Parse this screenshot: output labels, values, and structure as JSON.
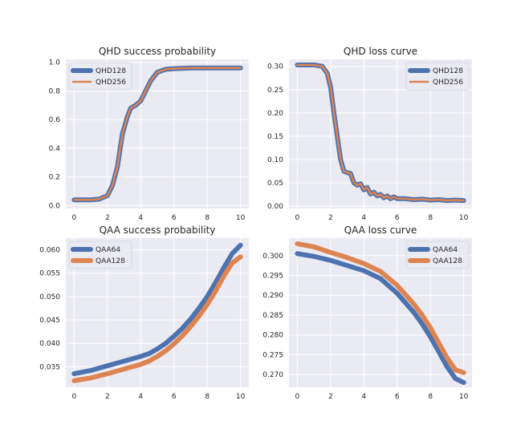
{
  "chart_data": [
    {
      "type": "line",
      "title": "QHD success probability",
      "xlabel": "",
      "ylabel": "",
      "xlim": [
        -0.5,
        10.5
      ],
      "ylim": [
        -0.02,
        1.02
      ],
      "xticks": [
        0,
        2,
        4,
        6,
        8,
        10
      ],
      "yticks": [
        0.0,
        0.2,
        0.4,
        0.6,
        0.8,
        1.0
      ],
      "ytick_decimals": 1,
      "grid": true,
      "legend_position": "upper-left",
      "series": [
        {
          "name": "QHD128",
          "color": "#4c72b0",
          "width": "thick",
          "x": [
            0,
            0.5,
            1.0,
            1.5,
            2.0,
            2.3,
            2.6,
            2.9,
            3.2,
            3.4,
            3.7,
            4.0,
            4.3,
            4.6,
            5.0,
            5.5,
            6.0,
            7.0,
            8.0,
            9.0,
            10.0
          ],
          "y": [
            0.04,
            0.04,
            0.04,
            0.045,
            0.07,
            0.14,
            0.27,
            0.5,
            0.62,
            0.68,
            0.7,
            0.73,
            0.8,
            0.87,
            0.93,
            0.95,
            0.955,
            0.96,
            0.96,
            0.96,
            0.96
          ]
        },
        {
          "name": "QHD256",
          "color": "#dd8452",
          "width": "thin",
          "x": [
            0,
            0.5,
            1.0,
            1.5,
            2.0,
            2.3,
            2.6,
            2.9,
            3.2,
            3.4,
            3.7,
            4.0,
            4.3,
            4.6,
            5.0,
            5.5,
            6.0,
            7.0,
            8.0,
            9.0,
            10.0
          ],
          "y": [
            0.04,
            0.04,
            0.04,
            0.045,
            0.07,
            0.14,
            0.27,
            0.5,
            0.62,
            0.68,
            0.7,
            0.73,
            0.8,
            0.87,
            0.93,
            0.95,
            0.955,
            0.96,
            0.96,
            0.96,
            0.96
          ]
        }
      ]
    },
    {
      "type": "line",
      "title": "QHD loss curve",
      "xlabel": "",
      "ylabel": "",
      "xlim": [
        -0.5,
        10.5
      ],
      "ylim": [
        -0.005,
        0.315
      ],
      "xticks": [
        0,
        2,
        4,
        6,
        8,
        10
      ],
      "yticks": [
        0.0,
        0.05,
        0.1,
        0.15,
        0.2,
        0.25,
        0.3
      ],
      "ytick_decimals": 2,
      "grid": true,
      "legend_position": "upper-right",
      "series": [
        {
          "name": "QHD128",
          "color": "#4c72b0",
          "width": "thick",
          "x": [
            0,
            0.5,
            1.0,
            1.5,
            1.8,
            2.0,
            2.2,
            2.4,
            2.6,
            2.8,
            3.0,
            3.2,
            3.4,
            3.6,
            3.8,
            4.0,
            4.2,
            4.4,
            4.6,
            4.8,
            5.0,
            5.2,
            5.4,
            5.6,
            5.8,
            6.0,
            6.5,
            7.0,
            7.5,
            8.0,
            8.5,
            9.0,
            9.5,
            10.0
          ],
          "y": [
            0.303,
            0.303,
            0.303,
            0.3,
            0.285,
            0.255,
            0.2,
            0.15,
            0.1,
            0.075,
            0.072,
            0.07,
            0.05,
            0.045,
            0.048,
            0.035,
            0.04,
            0.026,
            0.03,
            0.022,
            0.025,
            0.018,
            0.022,
            0.016,
            0.02,
            0.016,
            0.016,
            0.014,
            0.015,
            0.013,
            0.014,
            0.012,
            0.013,
            0.012
          ]
        },
        {
          "name": "QHD256",
          "color": "#dd8452",
          "width": "thin",
          "x": [
            0,
            0.5,
            1.0,
            1.5,
            1.8,
            2.0,
            2.2,
            2.4,
            2.6,
            2.8,
            3.0,
            3.2,
            3.4,
            3.6,
            3.8,
            4.0,
            4.2,
            4.4,
            4.6,
            4.8,
            5.0,
            5.2,
            5.4,
            5.6,
            5.8,
            6.0,
            6.5,
            7.0,
            7.5,
            8.0,
            8.5,
            9.0,
            9.5,
            10.0
          ],
          "y": [
            0.303,
            0.303,
            0.303,
            0.3,
            0.285,
            0.255,
            0.2,
            0.15,
            0.1,
            0.075,
            0.072,
            0.07,
            0.05,
            0.045,
            0.048,
            0.035,
            0.04,
            0.026,
            0.03,
            0.022,
            0.025,
            0.018,
            0.022,
            0.016,
            0.02,
            0.016,
            0.016,
            0.014,
            0.015,
            0.013,
            0.014,
            0.012,
            0.013,
            0.012
          ]
        }
      ]
    },
    {
      "type": "line",
      "title": "QAA success probability",
      "xlabel": "",
      "ylabel": "",
      "xlim": [
        -0.5,
        10.5
      ],
      "ylim": [
        0.0306,
        0.0625
      ],
      "xticks": [
        0,
        2,
        4,
        6,
        8,
        10
      ],
      "yticks": [
        0.035,
        0.04,
        0.045,
        0.05,
        0.055,
        0.06
      ],
      "ytick_decimals": 3,
      "grid": true,
      "legend_position": "upper-left",
      "series": [
        {
          "name": "QAA64",
          "color": "#4c72b0",
          "width": "thick",
          "x": [
            0,
            1,
            2,
            3,
            4,
            4.5,
            5,
            5.5,
            6,
            6.5,
            7,
            7.5,
            8,
            8.5,
            9,
            9.5,
            10
          ],
          "y": [
            0.0335,
            0.0342,
            0.0352,
            0.0362,
            0.0372,
            0.0378,
            0.0388,
            0.04,
            0.0415,
            0.0432,
            0.0452,
            0.0475,
            0.05,
            0.053,
            0.0562,
            0.0592,
            0.061
          ]
        },
        {
          "name": "QAA128",
          "color": "#dd8452",
          "width": "thick",
          "x": [
            0,
            1,
            2,
            3,
            4,
            4.5,
            5,
            5.5,
            6,
            6.5,
            7,
            7.5,
            8,
            8.5,
            9,
            9.5,
            10
          ],
          "y": [
            0.032,
            0.0326,
            0.0335,
            0.0345,
            0.0355,
            0.0362,
            0.0372,
            0.0384,
            0.0399,
            0.0416,
            0.0436,
            0.0458,
            0.0483,
            0.0512,
            0.0544,
            0.0572,
            0.0585
          ]
        }
      ]
    },
    {
      "type": "line",
      "title": "QAA loss curve",
      "xlabel": "",
      "ylabel": "",
      "xlim": [
        -0.5,
        10.5
      ],
      "ylim": [
        0.2668,
        0.3044
      ],
      "xticks": [
        0,
        2,
        4,
        6,
        8,
        10
      ],
      "yticks": [
        0.27,
        0.275,
        0.28,
        0.285,
        0.29,
        0.295,
        0.3
      ],
      "ytick_decimals": 3,
      "grid": true,
      "legend_position": "upper-right",
      "series": [
        {
          "name": "QAA64",
          "color": "#4c72b0",
          "width": "thick",
          "x": [
            0,
            1,
            2,
            3,
            4,
            5,
            6,
            7,
            7.5,
            8,
            8.5,
            9,
            9.5,
            10
          ],
          "y": [
            0.3005,
            0.2998,
            0.2988,
            0.2975,
            0.2962,
            0.2942,
            0.2905,
            0.2857,
            0.2828,
            0.2795,
            0.2758,
            0.272,
            0.269,
            0.268
          ]
        },
        {
          "name": "QAA128",
          "color": "#dd8452",
          "width": "thick",
          "x": [
            0,
            1,
            2,
            3,
            4,
            5,
            6,
            7,
            7.5,
            8,
            8.5,
            9,
            9.5,
            10
          ],
          "y": [
            0.303,
            0.3022,
            0.3008,
            0.2995,
            0.298,
            0.296,
            0.2925,
            0.2878,
            0.285,
            0.2818,
            0.278,
            0.2742,
            0.2712,
            0.2705
          ]
        }
      ]
    }
  ]
}
